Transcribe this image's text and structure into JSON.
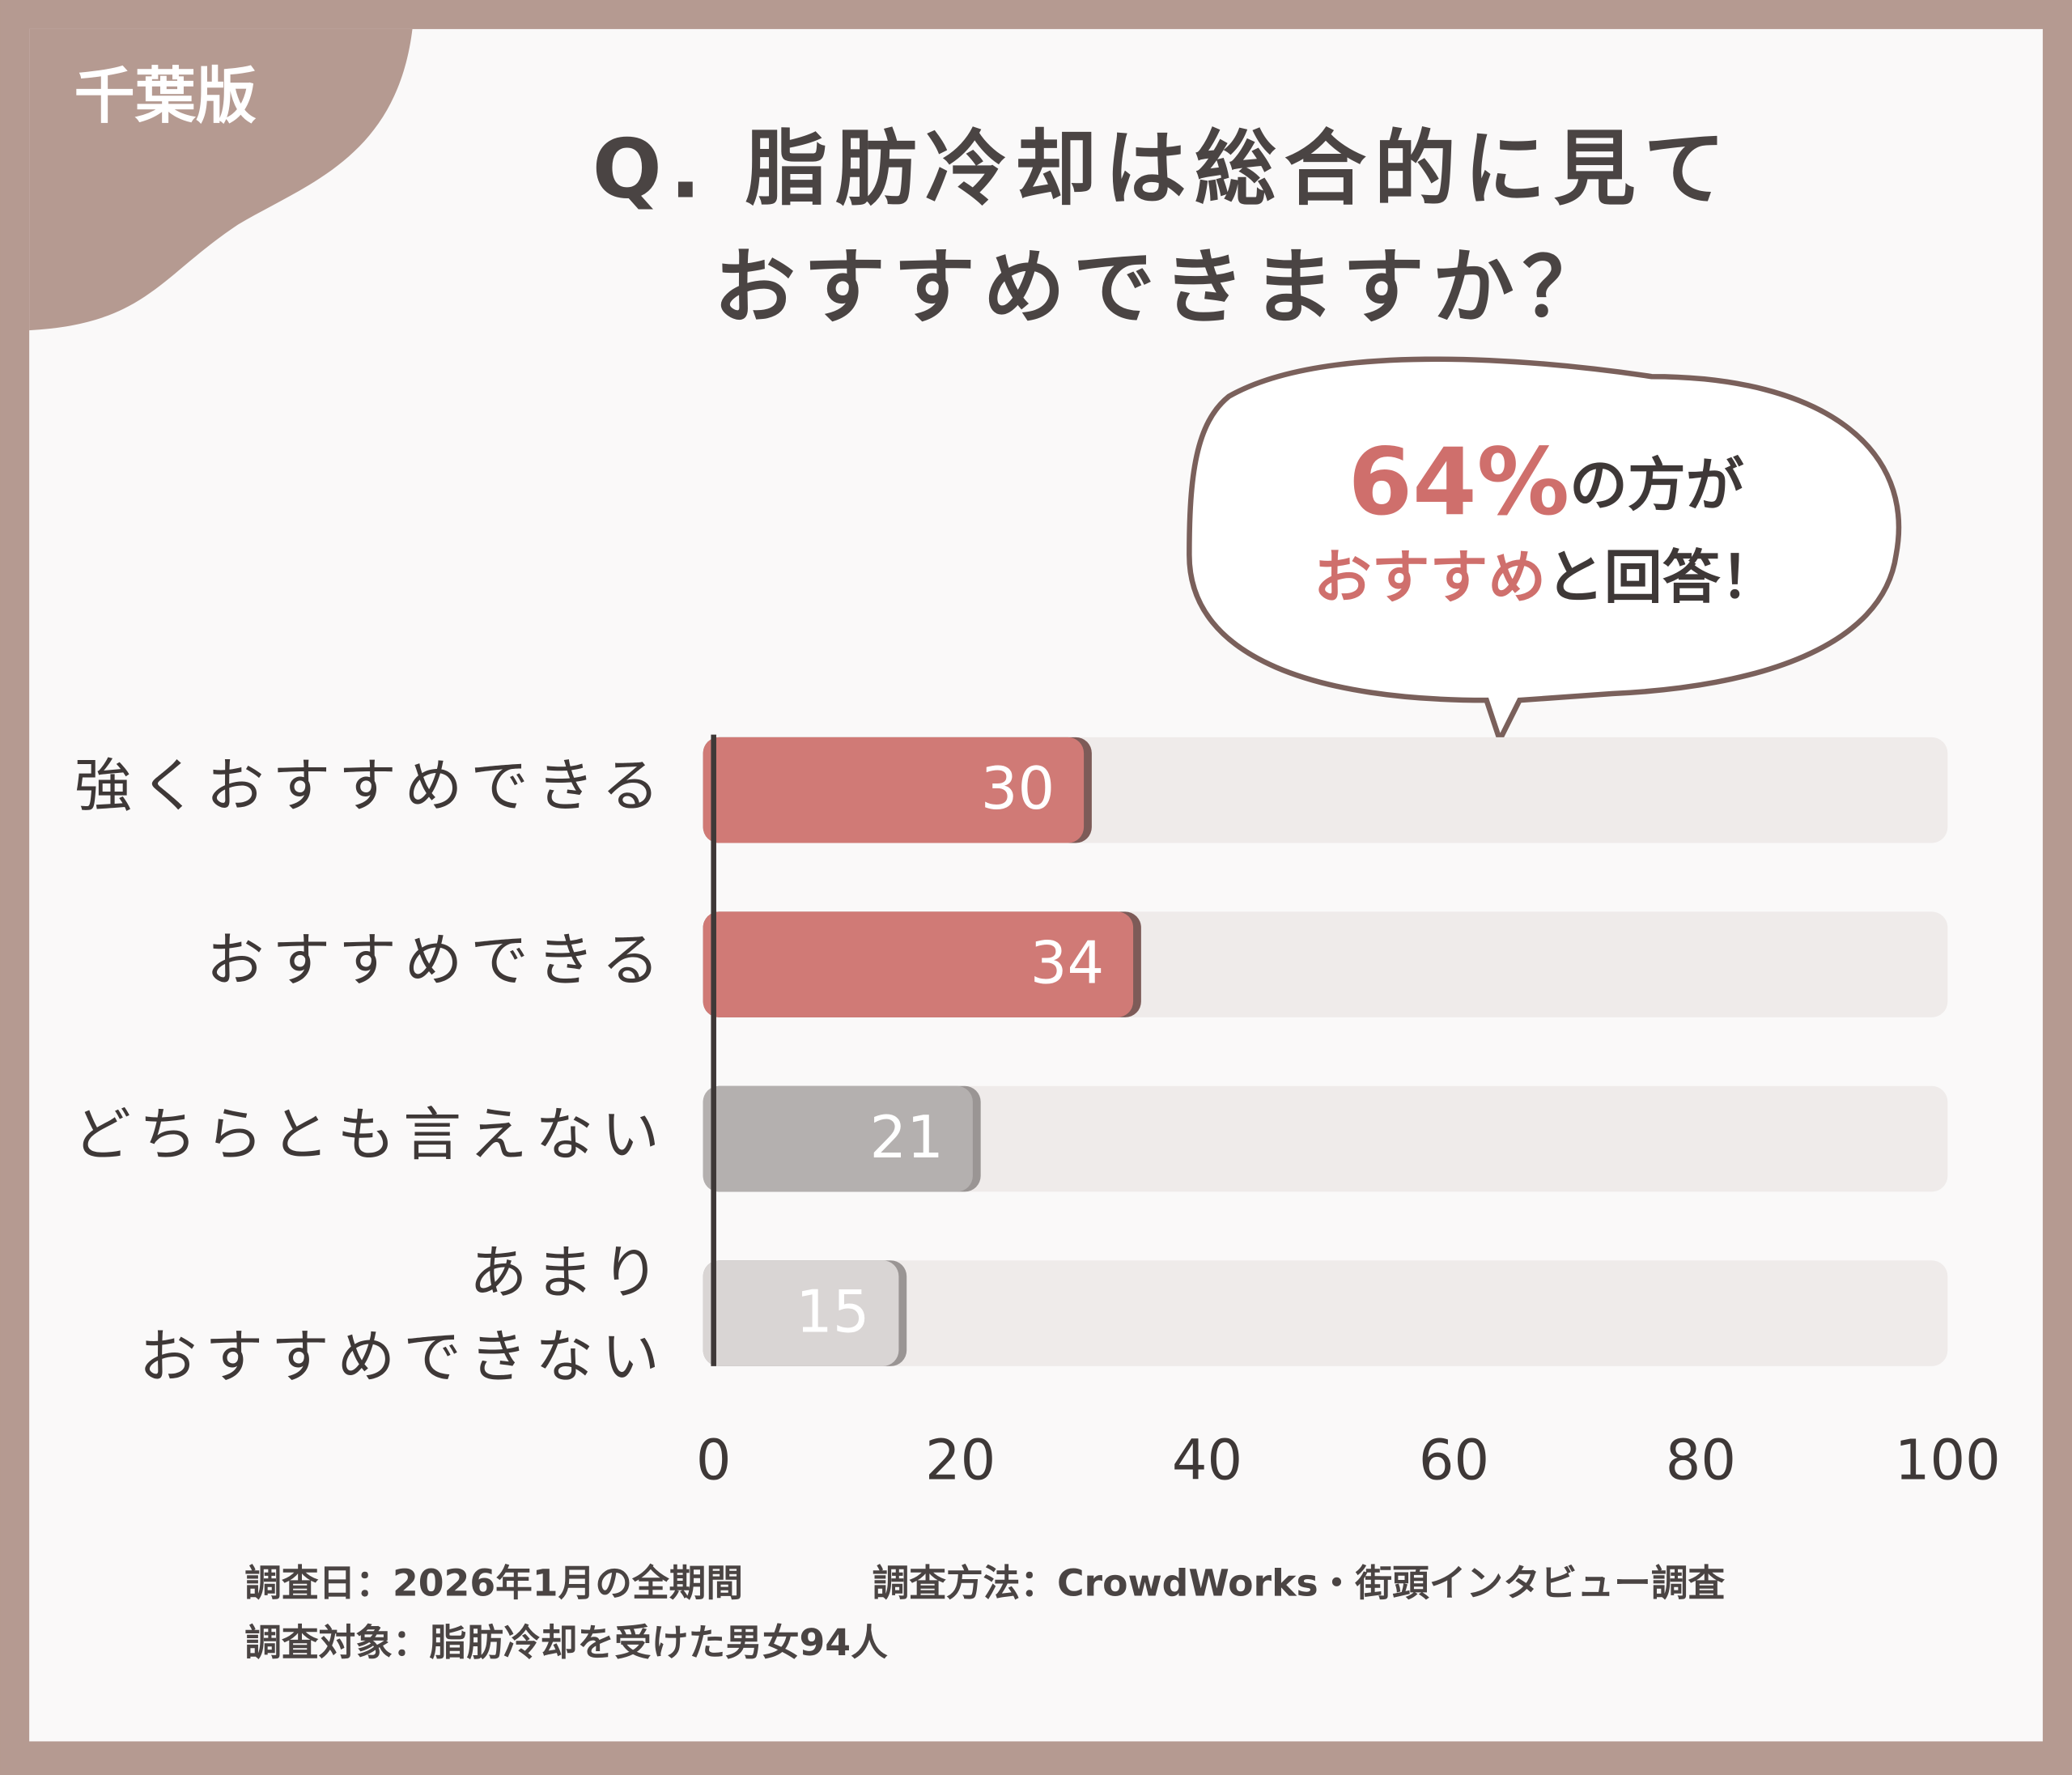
{
  "badge": "千葉版",
  "chart_data": {
    "type": "hbar",
    "title": "Q. 脂肪冷却は総合的に見て\nおすすめできますか？",
    "annotation": [
      "64%",
      "の方が",
      "おすすめ",
      "と回答！"
    ],
    "categories": [
      "強くおすすめできる",
      "おすすめできる",
      "どちらとも言えない",
      "あまり\nおすすめできない"
    ],
    "values": [
      30,
      34,
      21,
      15
    ],
    "colors": [
      "#d07a76",
      "#d07a76",
      "#b4b0af",
      "#d9d5d4"
    ],
    "xlim": [
      0,
      100
    ],
    "xticks": [
      0,
      20,
      40,
      60,
      80,
      100
    ]
  },
  "footnotes": [
    "調査日：2026年1月の全期間",
    "調査方法：CrowdWorks・街頭インタビュー調査",
    "調査対象：脂肪冷却を受けた男女94人"
  ]
}
